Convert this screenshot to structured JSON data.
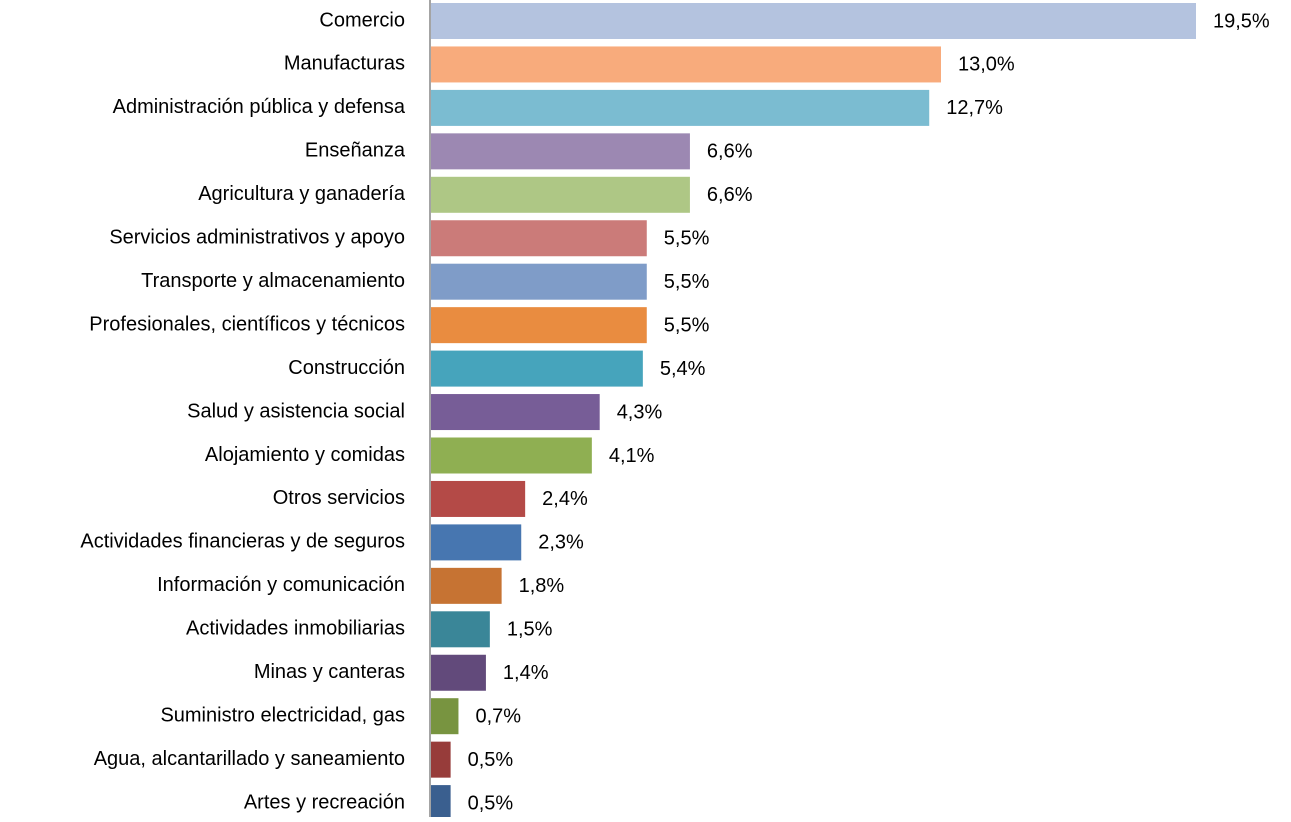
{
  "chart_data": {
    "type": "barh",
    "categories": [
      "Comercio",
      "Manufacturas",
      "Administración pública y defensa",
      "Enseñanza",
      "Agricultura y ganadería",
      "Servicios administrativos y apoyo",
      "Transporte y almacenamiento",
      "Profesionales, científicos y técnicos",
      "Construcción",
      "Salud y asistencia social",
      "Alojamiento y comidas",
      "Otros servicios",
      "Actividades financieras y de seguros",
      "Información y comunicación",
      "Actividades inmobiliarias",
      "Minas y canteras",
      "Suministro electricidad, gas",
      "Agua, alcantarillado y saneamiento",
      "Artes y recreación"
    ],
    "values": [
      19.5,
      13.0,
      12.7,
      6.6,
      6.6,
      5.5,
      5.5,
      5.5,
      5.4,
      4.3,
      4.1,
      2.4,
      2.3,
      1.8,
      1.5,
      1.4,
      0.7,
      0.5,
      0.5
    ],
    "value_labels": [
      "19,5%",
      "13,0%",
      "12,7%",
      "6,6%",
      "6,6%",
      "5,5%",
      "5,5%",
      "5,5%",
      "5,4%",
      "4,3%",
      "4,1%",
      "2,4%",
      "2,3%",
      "1,8%",
      "1,5%",
      "1,4%",
      "0,7%",
      "0,5%",
      "0,5%"
    ],
    "colors": [
      "#b4c3df",
      "#f8ab7c",
      "#7bbcd1",
      "#9c88b2",
      "#aec785",
      "#cb7b79",
      "#7f9cc8",
      "#e98c40",
      "#46a4bc",
      "#775d97",
      "#8faf52",
      "#b44a47",
      "#4776b0",
      "#c67333",
      "#3a8698",
      "#624a7b",
      "#789440",
      "#973c3a",
      "#3a5f8f"
    ]
  }
}
